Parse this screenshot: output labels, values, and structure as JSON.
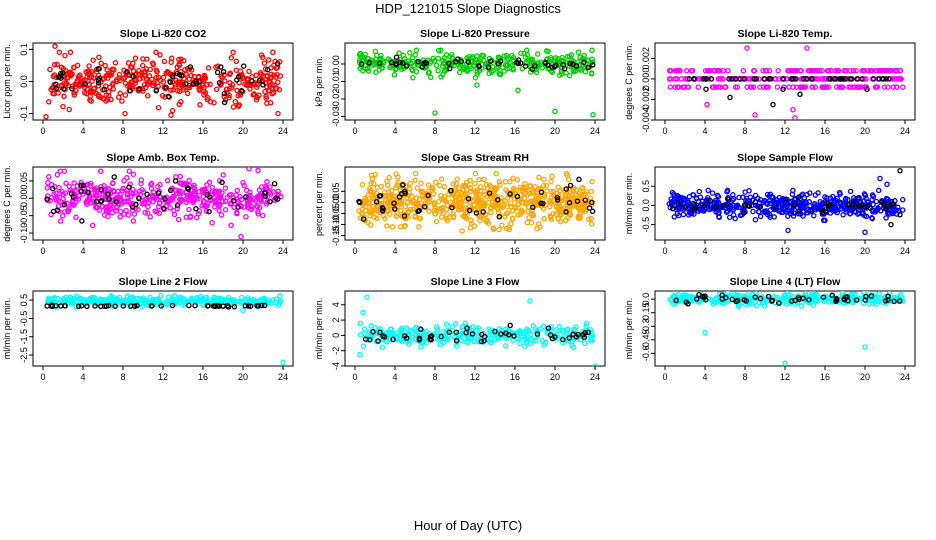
{
  "figure": {
    "title": "HDP_121015  Slope Diagnostics",
    "xlabel": "Hour of Day (UTC)"
  },
  "chart_data": [
    {
      "type": "scatter",
      "title": "Slope Li-820 CO2",
      "ylabel": "Licor ppm per min.",
      "xlim": [
        0,
        24
      ],
      "xticks": [
        0,
        4,
        8,
        12,
        16,
        20,
        24
      ],
      "ylim": [
        -0.12,
        0.12
      ],
      "yticks": [
        -0.1,
        0.0,
        0.1
      ],
      "yticklabels": [
        "-0.1",
        "0.0",
        "0.1"
      ],
      "color": "#ff0000",
      "series": [
        {
          "name": "all",
          "n": 420,
          "center": 0.0,
          "spread": 0.035,
          "outliers": [
            [
              1.2,
              0.11
            ],
            [
              0.3,
              -0.11
            ],
            [
              8.2,
              -0.1
            ],
            [
              12.8,
              -0.105
            ],
            [
              23.5,
              -0.1
            ]
          ]
        },
        {
          "name": "hourly",
          "n": 48,
          "center": 0.0,
          "spread": 0.025
        }
      ]
    },
    {
      "type": "scatter",
      "title": "Slope Li-820 Pressure",
      "ylabel": "kPa per min.",
      "xlim": [
        0,
        24
      ],
      "xticks": [
        0,
        4,
        8,
        12,
        16,
        20,
        24
      ],
      "ylim": [
        -0.032,
        0.012
      ],
      "yticks": [
        -0.03,
        -0.02,
        -0.01,
        0.0
      ],
      "yticklabels": [
        "-0.03",
        "-0.02",
        "-0.01",
        "0.00"
      ],
      "color": "#00cc00",
      "series": [
        {
          "name": "all",
          "n": 330,
          "center": 0.0,
          "spread": 0.003,
          "outliers": [
            [
              8.0,
              -0.028
            ],
            [
              20.0,
              -0.027
            ],
            [
              12.2,
              -0.012
            ],
            [
              23.8,
              -0.029
            ],
            [
              16.3,
              -0.015
            ]
          ]
        },
        {
          "name": "hourly",
          "n": 48,
          "center": 0.0,
          "spread": 0.0015
        }
      ]
    },
    {
      "type": "scatter",
      "title": "Slope Li-820 Temp.",
      "ylabel": "degrees C per min.",
      "xlim": [
        0,
        24
      ],
      "xticks": [
        0,
        4,
        8,
        12,
        16,
        20,
        24
      ],
      "ylim": [
        -0.004,
        0.0035
      ],
      "yticks": [
        -0.004,
        -0.002,
        0.0,
        0.002
      ],
      "yticklabels": [
        "-0.004",
        "-0.002",
        "0.000",
        "0.002"
      ],
      "color": "#ff00ff",
      "series": [
        {
          "name": "all",
          "n": 300,
          "levels": [
            0.0008,
            0.0,
            -0.0008
          ],
          "outliers": [
            [
              8.2,
              0.003
            ],
            [
              9.0,
              -0.0035
            ],
            [
              12.8,
              -0.003
            ],
            [
              14.2,
              0.003
            ],
            [
              13.0,
              -0.0038
            ],
            [
              4.2,
              -0.0025
            ]
          ]
        },
        {
          "name": "hourly",
          "n": 48,
          "levels": [
            0.0
          ],
          "outliers": [
            [
              6.5,
              -0.0018
            ],
            [
              10.8,
              -0.0025
            ],
            [
              11.8,
              -0.001
            ],
            [
              13.5,
              -0.0015
            ],
            [
              20.2,
              -0.001
            ],
            [
              4.1,
              -0.001
            ]
          ]
        }
      ]
    },
    {
      "type": "scatter",
      "title": "Slope Amb. Box Temp.",
      "ylabel": "degrees C per min.",
      "xlim": [
        0,
        24
      ],
      "xticks": [
        0,
        4,
        8,
        12,
        16,
        20,
        24
      ],
      "ylim": [
        -0.12,
        0.09
      ],
      "yticks": [
        -0.1,
        -0.05,
        0.0,
        0.05
      ],
      "yticklabels": [
        "-0.10",
        "-0.05",
        "0.00",
        "0.05"
      ],
      "color": "#ff00ff",
      "series": [
        {
          "name": "all",
          "n": 430,
          "center": 0.0,
          "spread": 0.03,
          "outliers": [
            [
              19.8,
              -0.11
            ],
            [
              21.5,
              0.08
            ],
            [
              20.6,
              0.085
            ]
          ]
        },
        {
          "name": "hourly",
          "n": 48,
          "center": 0.0,
          "spread": 0.025
        }
      ]
    },
    {
      "type": "scatter",
      "title": "Slope Gas Stream RH",
      "ylabel": "percent per min.",
      "xlim": [
        0,
        24
      ],
      "xticks": [
        0,
        4,
        8,
        12,
        16,
        20,
        24
      ],
      "ylim": [
        -0.17,
        0.16
      ],
      "yticks": [
        -0.15,
        -0.1,
        -0.05,
        0.0,
        0.05
      ],
      "yticklabels": [
        "-0.15",
        "-0.10",
        "-0.05",
        "0.00",
        "0.05"
      ],
      "color": "#ffa500",
      "series": [
        {
          "name": "all",
          "n": 650,
          "center": 0.0,
          "spread": 0.05
        },
        {
          "name": "hourly",
          "n": 48,
          "center": 0.0,
          "spread": 0.04
        }
      ]
    },
    {
      "type": "scatter",
      "title": "Slope Sample Flow",
      "ylabel": "ml/min per min.",
      "xlim": [
        0,
        24
      ],
      "xticks": [
        0,
        4,
        8,
        12,
        16,
        20,
        24
      ],
      "ylim": [
        -0.9,
        1.0
      ],
      "yticks": [
        -0.5,
        0.0,
        0.5
      ],
      "yticklabels": [
        "-0.5",
        "0.0",
        "0.5"
      ],
      "color": "#0000ff",
      "series": [
        {
          "name": "all",
          "n": 520,
          "center": 0.0,
          "spread": 0.15,
          "outliers": [
            [
              20.0,
              -0.7
            ],
            [
              21.5,
              0.7
            ],
            [
              22.2,
              0.55
            ],
            [
              12.3,
              -0.65
            ]
          ]
        },
        {
          "name": "hourly",
          "n": 48,
          "center": -0.02,
          "spread": 0.1,
          "outliers": [
            [
              23.5,
              0.9
            ],
            [
              22.6,
              -0.5
            ]
          ]
        }
      ]
    },
    {
      "type": "scatter",
      "title": "Slope Line 2 Flow",
      "ylabel": "ml/min per min.",
      "xlim": [
        0,
        24
      ],
      "xticks": [
        0,
        4,
        8,
        12,
        16,
        20,
        24
      ],
      "ylim": [
        -3.1,
        1.0
      ],
      "yticks": [
        -2.5,
        -1.5,
        -0.5,
        0.5
      ],
      "yticklabels": [
        "-2.5",
        "-1.5",
        "-0.5",
        "0.5"
      ],
      "color": "#00ffff",
      "series": [
        {
          "name": "all",
          "n": 330,
          "center": 0.45,
          "spread": 0.12,
          "outliers": [
            [
              24.0,
              -2.9
            ],
            [
              20.0,
              -0.05
            ]
          ]
        },
        {
          "name": "hourly",
          "n": 48,
          "center": 0.18,
          "spread": 0.02
        }
      ]
    },
    {
      "type": "scatter",
      "title": "Slope Line 3 Flow",
      "ylabel": "ml/min per min.",
      "xlim": [
        0,
        24
      ],
      "xticks": [
        0,
        4,
        8,
        12,
        16,
        20,
        24
      ],
      "ylim": [
        -4.0,
        5.8
      ],
      "yticks": [
        -4,
        -2,
        0,
        2,
        4
      ],
      "yticklabels": [
        "-4",
        "-2",
        "0",
        "2",
        "4"
      ],
      "color": "#00ffff",
      "series": [
        {
          "name": "all",
          "n": 300,
          "center": 0.0,
          "spread": 0.6,
          "outliers": [
            [
              1.2,
              5.0
            ],
            [
              0.8,
              3.0
            ],
            [
              17.5,
              4.5
            ],
            [
              24.0,
              -4.0
            ],
            [
              0.5,
              -2.5
            ]
          ]
        },
        {
          "name": "hourly",
          "n": 48,
          "center": 0.0,
          "spread": 0.5
        }
      ]
    },
    {
      "type": "scatter",
      "title": "Slope Line 4 (LT) Flow",
      "ylabel": "ml/min per min.",
      "xlim": [
        0,
        24
      ],
      "xticks": [
        0,
        4,
        8,
        12,
        16,
        20,
        24
      ],
      "ylim": [
        -0.74,
        0.09
      ],
      "yticks": [
        -0.6,
        -0.45,
        -0.3,
        -0.15,
        0.0
      ],
      "yticklabels": [
        "-0.6",
        "-0.45",
        "-0.3",
        "-0.15",
        "0.0"
      ],
      "color": "#00ffff",
      "series": [
        {
          "name": "all",
          "n": 300,
          "center": 0.0,
          "spread": 0.03,
          "outliers": [
            [
              4.0,
              -0.37
            ],
            [
              12.0,
              -0.71
            ],
            [
              20.0,
              -0.53
            ]
          ]
        },
        {
          "name": "hourly",
          "n": 48,
          "center": 0.0,
          "spread": 0.02
        }
      ]
    }
  ]
}
